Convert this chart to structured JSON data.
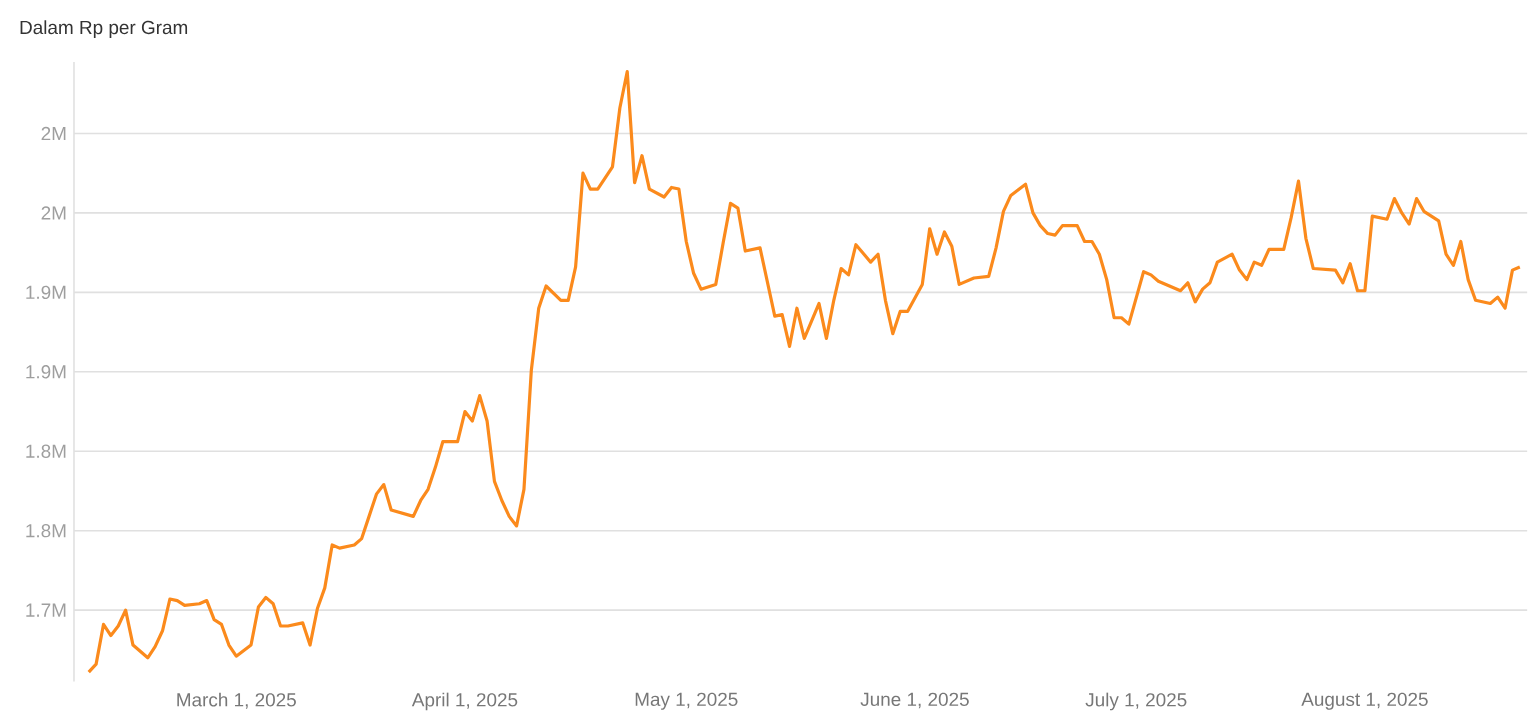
{
  "chart_data": {
    "type": "line",
    "ylabel": "Dalam Rp per Gram",
    "x": [
      "2025-02-09",
      "2025-02-10",
      "2025-02-11",
      "2025-02-12",
      "2025-02-13",
      "2025-02-14",
      "2025-02-15",
      "2025-02-17",
      "2025-02-18",
      "2025-02-19",
      "2025-02-20",
      "2025-02-21",
      "2025-02-22",
      "2025-02-24",
      "2025-02-25",
      "2025-02-26",
      "2025-02-27",
      "2025-02-28",
      "2025-03-01",
      "2025-03-03",
      "2025-03-04",
      "2025-03-05",
      "2025-03-06",
      "2025-03-07",
      "2025-03-08",
      "2025-03-10",
      "2025-03-11",
      "2025-03-12",
      "2025-03-13",
      "2025-03-14",
      "2025-03-15",
      "2025-03-17",
      "2025-03-18",
      "2025-03-19",
      "2025-03-20",
      "2025-03-21",
      "2025-03-22",
      "2025-03-25",
      "2025-03-26",
      "2025-03-27",
      "2025-03-28",
      "2025-03-29",
      "2025-03-31",
      "2025-04-01",
      "2025-04-02",
      "2025-04-03",
      "2025-04-04",
      "2025-04-05",
      "2025-04-06",
      "2025-04-07",
      "2025-04-08",
      "2025-04-09",
      "2025-04-10",
      "2025-04-11",
      "2025-04-12",
      "2025-04-14",
      "2025-04-15",
      "2025-04-16",
      "2025-04-17",
      "2025-04-18",
      "2025-04-19",
      "2025-04-21",
      "2025-04-22",
      "2025-04-23",
      "2025-04-24",
      "2025-04-25",
      "2025-04-26",
      "2025-04-28",
      "2025-04-29",
      "2025-04-30",
      "2025-05-01",
      "2025-05-02",
      "2025-05-03",
      "2025-05-05",
      "2025-05-06",
      "2025-05-07",
      "2025-05-08",
      "2025-05-09",
      "2025-05-11",
      "2025-05-13",
      "2025-05-14",
      "2025-05-15",
      "2025-05-16",
      "2025-05-17",
      "2025-05-19",
      "2025-05-20",
      "2025-05-21",
      "2025-05-22",
      "2025-05-23",
      "2025-05-24",
      "2025-05-26",
      "2025-05-27",
      "2025-05-28",
      "2025-05-29",
      "2025-05-30",
      "2025-05-31",
      "2025-06-02",
      "2025-06-03",
      "2025-06-04",
      "2025-06-05",
      "2025-06-06",
      "2025-06-07",
      "2025-06-09",
      "2025-06-11",
      "2025-06-12",
      "2025-06-13",
      "2025-06-14",
      "2025-06-16",
      "2025-06-17",
      "2025-06-18",
      "2025-06-19",
      "2025-06-20",
      "2025-06-21",
      "2025-06-23",
      "2025-06-24",
      "2025-06-25",
      "2025-06-26",
      "2025-06-27",
      "2025-06-28",
      "2025-06-29",
      "2025-06-30",
      "2025-07-02",
      "2025-07-03",
      "2025-07-04",
      "2025-07-07",
      "2025-07-08",
      "2025-07-09",
      "2025-07-10",
      "2025-07-11",
      "2025-07-12",
      "2025-07-14",
      "2025-07-15",
      "2025-07-16",
      "2025-07-17",
      "2025-07-18",
      "2025-07-19",
      "2025-07-21",
      "2025-07-22",
      "2025-07-23",
      "2025-07-24",
      "2025-07-25",
      "2025-07-28",
      "2025-07-29",
      "2025-07-30",
      "2025-07-31",
      "2025-08-01",
      "2025-08-02",
      "2025-08-04",
      "2025-08-05",
      "2025-08-06",
      "2025-08-07",
      "2025-08-08",
      "2025-08-09",
      "2025-08-11",
      "2025-08-12",
      "2025-08-13",
      "2025-08-14",
      "2025-08-15",
      "2025-08-16",
      "2025-08-18",
      "2025-08-19",
      "2025-08-20",
      "2025-08-21",
      "2025-08-22"
    ],
    "series": [
      {
        "color": "#fb8a1c",
        "values": [
          1.661,
          1.666,
          1.691,
          1.684,
          1.69,
          1.7,
          1.678,
          1.67,
          1.677,
          1.687,
          1.707,
          1.706,
          1.703,
          1.704,
          1.706,
          1.694,
          1.691,
          1.678,
          1.671,
          1.678,
          1.702,
          1.708,
          1.704,
          1.69,
          1.69,
          1.692,
          1.678,
          1.701,
          1.714,
          1.741,
          1.739,
          1.741,
          1.745,
          1.759,
          1.773,
          1.779,
          1.763,
          1.759,
          1.769,
          1.776,
          1.79,
          1.806,
          1.806,
          1.825,
          1.819,
          1.835,
          1.819,
          1.781,
          1.769,
          1.759,
          1.753,
          1.776,
          1.851,
          1.89,
          1.904,
          1.895,
          1.895,
          1.916,
          1.975,
          1.965,
          1.965,
          1.979,
          2.016,
          2.039,
          1.969,
          1.986,
          1.965,
          1.96,
          1.966,
          1.965,
          1.932,
          1.912,
          1.902,
          1.905,
          1.931,
          1.956,
          1.953,
          1.926,
          1.928,
          1.885,
          1.886,
          1.866,
          1.89,
          1.871,
          1.893,
          1.871,
          1.895,
          1.915,
          1.911,
          1.93,
          1.919,
          1.924,
          1.895,
          1.874,
          1.888,
          1.888,
          1.905,
          1.94,
          1.924,
          1.938,
          1.929,
          1.905,
          1.909,
          1.91,
          1.928,
          1.951,
          1.961,
          1.968,
          1.95,
          1.942,
          1.937,
          1.936,
          1.942,
          1.942,
          1.932,
          1.932,
          1.924,
          1.908,
          1.884,
          1.884,
          1.88,
          1.913,
          1.911,
          1.907,
          1.901,
          1.906,
          1.894,
          1.902,
          1.906,
          1.919,
          1.924,
          1.914,
          1.908,
          1.919,
          1.917,
          1.927,
          1.927,
          1.947,
          1.97,
          1.934,
          1.915,
          1.914,
          1.906,
          1.918,
          1.901,
          1.901,
          1.948,
          1.946,
          1.959,
          1.95,
          1.943,
          1.959,
          1.951,
          1.945,
          1.924,
          1.917,
          1.932,
          1.908,
          1.895,
          1.893,
          1.897,
          1.89,
          1.914,
          1.916
        ]
      }
    ],
    "xlim": [
      "2025-02-07",
      "2025-08-23"
    ],
    "xticks": [
      {
        "value": "2025-03-01",
        "label": "March 1, 2025"
      },
      {
        "value": "2025-04-01",
        "label": "April 1, 2025"
      },
      {
        "value": "2025-05-01",
        "label": "May 1, 2025"
      },
      {
        "value": "2025-06-01",
        "label": "June 1, 2025"
      },
      {
        "value": "2025-07-01",
        "label": "July 1, 2025"
      },
      {
        "value": "2025-08-01",
        "label": "August 1, 2025"
      }
    ],
    "ylim": [
      1.655,
      2.045
    ],
    "yticks": [
      {
        "value": 1.7,
        "label": "1.7M"
      },
      {
        "value": 1.75,
        "label": "1.8M"
      },
      {
        "value": 1.8,
        "label": "1.8M"
      },
      {
        "value": 1.85,
        "label": "1.9M"
      },
      {
        "value": 1.9,
        "label": "1.9M"
      },
      {
        "value": 1.95,
        "label": "2M"
      },
      {
        "value": 2.0,
        "label": "2M"
      }
    ],
    "grid": "y"
  }
}
